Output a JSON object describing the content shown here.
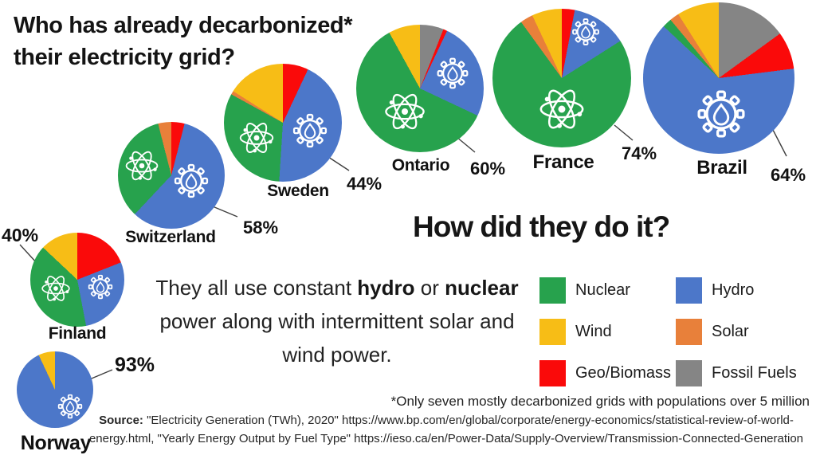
{
  "title": {
    "line1": "Who has already decarbonized*",
    "line2": "their electricity grid?"
  },
  "subtitle": "How did they do it?",
  "explanation": {
    "segments": [
      {
        "text": "They all use constant ",
        "bold": false
      },
      {
        "text": "hydro",
        "bold": true
      },
      {
        "text": " or ",
        "bold": false
      },
      {
        "text": "nuclear",
        "bold": true
      },
      {
        "text": " power along with intermittent solar and wind power.",
        "bold": false
      }
    ]
  },
  "footnote": "*Only seven mostly decarbonized grids with populations over 5 million",
  "source": {
    "label": "Source:",
    "line1_rest": " \"Electricity Generation (TWh), 2020\" https://www.bp.com/en/global/corporate/energy-economics/statistical-review-of-world-",
    "line2": "energy.html, \"Yearly Energy Output by Fuel Type\" https://ieso.ca/en/Power-Data/Supply-Overview/Transmission-Connected-Generation"
  },
  "colors": {
    "nuclear": "#27A24D",
    "hydro": "#4C77C9",
    "wind": "#F7BD16",
    "solar": "#E8803A",
    "geo_biomass": "#FA0A0A",
    "fossil": "#858585"
  },
  "legend": {
    "columns": [
      [
        {
          "fuel": "nuclear",
          "label": "Nuclear"
        },
        {
          "fuel": "wind",
          "label": "Wind"
        },
        {
          "fuel": "geo_biomass",
          "label": "Geo/Biomass"
        }
      ],
      [
        {
          "fuel": "hydro",
          "label": "Hydro"
        },
        {
          "fuel": "solar",
          "label": "Solar"
        },
        {
          "fuel": "fossil",
          "label": "Fossil Fuels"
        }
      ]
    ]
  },
  "chart_data": [
    {
      "type": "pie",
      "title": "Finland",
      "label_pct": "40%",
      "slices": [
        {
          "fuel": "geo_biomass",
          "value": 19
        },
        {
          "fuel": "hydro",
          "value": 28
        },
        {
          "fuel": "nuclear",
          "value": 40
        },
        {
          "fuel": "wind",
          "value": 13
        }
      ],
      "icons": [
        "nuclear",
        "hydro"
      ]
    },
    {
      "type": "pie",
      "title": "Norway",
      "label_pct": "93%",
      "slices": [
        {
          "fuel": "hydro",
          "value": 93
        },
        {
          "fuel": "wind",
          "value": 7
        }
      ],
      "icons": [
        "hydro"
      ]
    },
    {
      "type": "pie",
      "title": "Switzerland",
      "label_pct": "58%",
      "slices": [
        {
          "fuel": "geo_biomass",
          "value": 4
        },
        {
          "fuel": "hydro",
          "value": 58
        },
        {
          "fuel": "nuclear",
          "value": 34
        },
        {
          "fuel": "solar",
          "value": 4
        }
      ],
      "icons": [
        "nuclear",
        "hydro"
      ]
    },
    {
      "type": "pie",
      "title": "Sweden",
      "label_pct": "44%",
      "slices": [
        {
          "fuel": "geo_biomass",
          "value": 7
        },
        {
          "fuel": "hydro",
          "value": 44
        },
        {
          "fuel": "nuclear",
          "value": 32
        },
        {
          "fuel": "solar",
          "value": 1
        },
        {
          "fuel": "wind",
          "value": 16
        }
      ],
      "icons": [
        "nuclear",
        "hydro"
      ]
    },
    {
      "type": "pie",
      "title": "Ontario",
      "label_pct": "60%",
      "slices": [
        {
          "fuel": "fossil",
          "value": 6
        },
        {
          "fuel": "geo_biomass",
          "value": 1
        },
        {
          "fuel": "hydro",
          "value": 25
        },
        {
          "fuel": "nuclear",
          "value": 60
        },
        {
          "fuel": "wind",
          "value": 8
        }
      ],
      "icons": [
        "nuclear",
        "hydro"
      ]
    },
    {
      "type": "pie",
      "title": "France",
      "label_pct": "74%",
      "slices": [
        {
          "fuel": "geo_biomass",
          "value": 3
        },
        {
          "fuel": "hydro",
          "value": 13
        },
        {
          "fuel": "nuclear",
          "value": 74
        },
        {
          "fuel": "solar",
          "value": 3
        },
        {
          "fuel": "wind",
          "value": 7
        }
      ],
      "icons": [
        "nuclear",
        "hydro"
      ]
    },
    {
      "type": "pie",
      "title": "Brazil",
      "label_pct": "64%",
      "slices": [
        {
          "fuel": "fossil",
          "value": 15
        },
        {
          "fuel": "geo_biomass",
          "value": 8
        },
        {
          "fuel": "hydro",
          "value": 64
        },
        {
          "fuel": "nuclear",
          "value": 2
        },
        {
          "fuel": "solar",
          "value": 2
        },
        {
          "fuel": "wind",
          "value": 9
        }
      ],
      "icons": [
        "hydro"
      ]
    }
  ]
}
